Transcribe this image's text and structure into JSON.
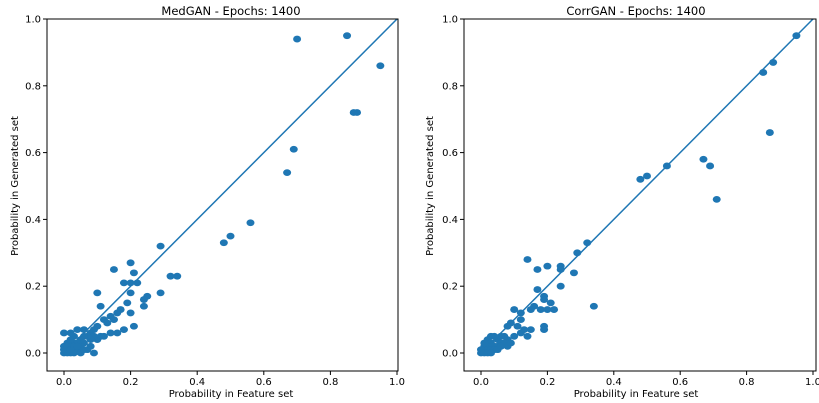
{
  "chart_data": [
    {
      "type": "scatter",
      "title": "MedGAN - Epochs: 1400",
      "xlabel": "Probability in Feature set",
      "ylabel": "Probability in Generated set",
      "xlim": [
        0.0,
        1.0
      ],
      "ylim": [
        0.0,
        1.0
      ],
      "xticks": [
        "0.0",
        "0.2",
        "0.4",
        "0.6",
        "0.8",
        "1.0"
      ],
      "yticks": [
        "0.0",
        "0.2",
        "0.4",
        "0.6",
        "0.8",
        "1.0"
      ],
      "grid": false,
      "reference_line": [
        [
          0,
          0
        ],
        [
          1,
          1
        ]
      ],
      "colors": {
        "points": "#1f77b4",
        "line": "#1f77b4"
      },
      "points": [
        [
          0.95,
          0.86
        ],
        [
          0.85,
          0.95
        ],
        [
          0.7,
          0.94
        ],
        [
          0.88,
          0.72
        ],
        [
          0.87,
          0.72
        ],
        [
          0.69,
          0.61
        ],
        [
          0.67,
          0.54
        ],
        [
          0.56,
          0.39
        ],
        [
          0.5,
          0.35
        ],
        [
          0.48,
          0.33
        ],
        [
          0.34,
          0.23
        ],
        [
          0.32,
          0.23
        ],
        [
          0.29,
          0.32
        ],
        [
          0.29,
          0.18
        ],
        [
          0.2,
          0.27
        ],
        [
          0.21,
          0.24
        ],
        [
          0.15,
          0.25
        ],
        [
          0.22,
          0.21
        ],
        [
          0.18,
          0.21
        ],
        [
          0.2,
          0.21
        ],
        [
          0.25,
          0.17
        ],
        [
          0.24,
          0.16
        ],
        [
          0.2,
          0.18
        ],
        [
          0.19,
          0.15
        ],
        [
          0.1,
          0.18
        ],
        [
          0.24,
          0.14
        ],
        [
          0.17,
          0.13
        ],
        [
          0.2,
          0.12
        ],
        [
          0.16,
          0.12
        ],
        [
          0.14,
          0.11
        ],
        [
          0.12,
          0.1
        ],
        [
          0.15,
          0.1
        ],
        [
          0.13,
          0.09
        ],
        [
          0.11,
          0.14
        ],
        [
          0.1,
          0.08
        ],
        [
          0.09,
          0.07
        ],
        [
          0.08,
          0.06
        ],
        [
          0.21,
          0.08
        ],
        [
          0.18,
          0.07
        ],
        [
          0.16,
          0.06
        ],
        [
          0.14,
          0.06
        ],
        [
          0.12,
          0.05
        ],
        [
          0.1,
          0.04
        ],
        [
          0.11,
          0.05
        ],
        [
          0.09,
          0.05
        ],
        [
          0.08,
          0.04
        ],
        [
          0.07,
          0.05
        ],
        [
          0.06,
          0.05
        ],
        [
          0.05,
          0.04
        ],
        [
          0.06,
          0.03
        ],
        [
          0.08,
          0.02
        ],
        [
          0.07,
          0.01
        ],
        [
          0.09,
          0.0
        ],
        [
          0.05,
          0.02
        ],
        [
          0.04,
          0.03
        ],
        [
          0.03,
          0.05
        ],
        [
          0.02,
          0.06
        ],
        [
          0.0,
          0.06
        ],
        [
          0.04,
          0.07
        ],
        [
          0.06,
          0.07
        ],
        [
          0.03,
          0.03
        ],
        [
          0.02,
          0.02
        ],
        [
          0.01,
          0.01
        ],
        [
          0.0,
          0.0
        ],
        [
          0.01,
          0.03
        ],
        [
          0.02,
          0.04
        ],
        [
          0.03,
          0.01
        ],
        [
          0.04,
          0.01
        ],
        [
          0.05,
          0.01
        ],
        [
          0.01,
          0.0
        ],
        [
          0.02,
          0.0
        ],
        [
          0.03,
          0.0
        ],
        [
          0.0,
          0.02
        ],
        [
          0.0,
          0.01
        ],
        [
          0.01,
          0.02
        ],
        [
          0.02,
          0.01
        ],
        [
          0.03,
          0.02
        ],
        [
          0.04,
          0.02
        ],
        [
          0.05,
          0.0
        ],
        [
          0.06,
          0.01
        ]
      ]
    },
    {
      "type": "scatter",
      "title": "CorrGAN - Epochs: 1400",
      "xlabel": "Probability in Feature set",
      "ylabel": "Probability in Generated set",
      "xlim": [
        0.0,
        1.0
      ],
      "ylim": [
        0.0,
        1.0
      ],
      "xticks": [
        "0.0",
        "0.2",
        "0.4",
        "0.6",
        "0.8",
        "1.0"
      ],
      "yticks": [
        "0.0",
        "0.2",
        "0.4",
        "0.6",
        "0.8",
        "1.0"
      ],
      "grid": false,
      "reference_line": [
        [
          0,
          0
        ],
        [
          1,
          1
        ]
      ],
      "colors": {
        "points": "#1f77b4",
        "line": "#1f77b4"
      },
      "points": [
        [
          0.95,
          0.95
        ],
        [
          0.88,
          0.87
        ],
        [
          0.85,
          0.84
        ],
        [
          0.87,
          0.66
        ],
        [
          0.67,
          0.58
        ],
        [
          0.69,
          0.56
        ],
        [
          0.71,
          0.46
        ],
        [
          0.56,
          0.56
        ],
        [
          0.5,
          0.53
        ],
        [
          0.48,
          0.52
        ],
        [
          0.34,
          0.14
        ],
        [
          0.32,
          0.33
        ],
        [
          0.29,
          0.3
        ],
        [
          0.28,
          0.24
        ],
        [
          0.24,
          0.26
        ],
        [
          0.24,
          0.25
        ],
        [
          0.2,
          0.26
        ],
        [
          0.17,
          0.25
        ],
        [
          0.24,
          0.2
        ],
        [
          0.14,
          0.28
        ],
        [
          0.17,
          0.19
        ],
        [
          0.19,
          0.17
        ],
        [
          0.19,
          0.16
        ],
        [
          0.21,
          0.15
        ],
        [
          0.18,
          0.13
        ],
        [
          0.2,
          0.13
        ],
        [
          0.22,
          0.13
        ],
        [
          0.16,
          0.14
        ],
        [
          0.15,
          0.13
        ],
        [
          0.12,
          0.12
        ],
        [
          0.12,
          0.1
        ],
        [
          0.1,
          0.13
        ],
        [
          0.11,
          0.08
        ],
        [
          0.09,
          0.09
        ],
        [
          0.08,
          0.08
        ],
        [
          0.15,
          0.07
        ],
        [
          0.14,
          0.05
        ],
        [
          0.19,
          0.08
        ],
        [
          0.19,
          0.07
        ],
        [
          0.13,
          0.07
        ],
        [
          0.12,
          0.06
        ],
        [
          0.1,
          0.05
        ],
        [
          0.08,
          0.04
        ],
        [
          0.07,
          0.05
        ],
        [
          0.06,
          0.05
        ],
        [
          0.05,
          0.04
        ],
        [
          0.04,
          0.05
        ],
        [
          0.03,
          0.05
        ],
        [
          0.02,
          0.04
        ],
        [
          0.03,
          0.03
        ],
        [
          0.04,
          0.02
        ],
        [
          0.05,
          0.02
        ],
        [
          0.06,
          0.03
        ],
        [
          0.07,
          0.03
        ],
        [
          0.08,
          0.02
        ],
        [
          0.09,
          0.03
        ],
        [
          0.02,
          0.02
        ],
        [
          0.01,
          0.01
        ],
        [
          0.0,
          0.0
        ],
        [
          0.01,
          0.02
        ],
        [
          0.02,
          0.01
        ],
        [
          0.03,
          0.01
        ],
        [
          0.04,
          0.01
        ],
        [
          0.01,
          0.03
        ],
        [
          0.0,
          0.01
        ],
        [
          0.01,
          0.0
        ],
        [
          0.02,
          0.0
        ],
        [
          0.03,
          0.0
        ],
        [
          0.05,
          0.01
        ],
        [
          0.06,
          0.02
        ]
      ]
    }
  ]
}
